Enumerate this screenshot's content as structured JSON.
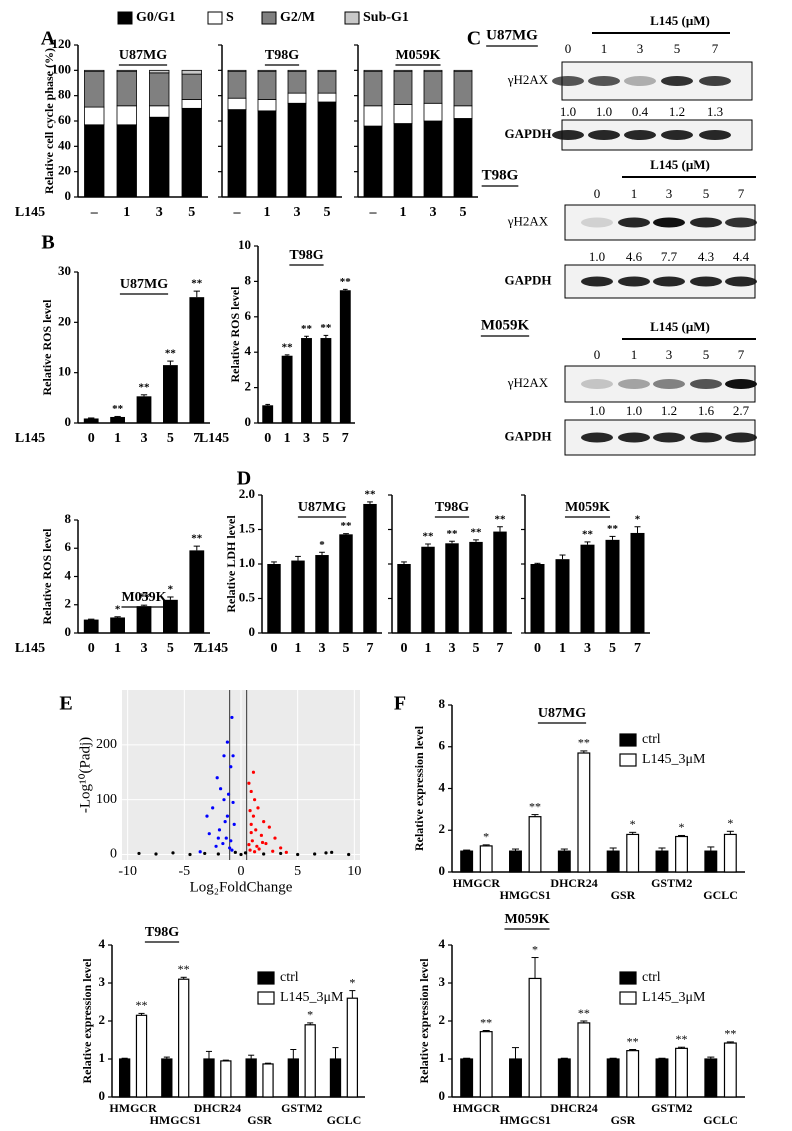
{
  "chart_data": [
    {
      "type": "stacked-bar",
      "panel": "A",
      "title": "U87MG",
      "y_label": "Relative cell cycle phase (%)",
      "x_label": "L145",
      "categories": [
        "–",
        "1",
        "3",
        "5"
      ],
      "ylim": [
        0,
        120
      ],
      "yticks": [
        0,
        20,
        40,
        60,
        80,
        100,
        120
      ],
      "series": [
        {
          "name": "G0/G1",
          "color": "#000000",
          "values": [
            57,
            57,
            63,
            70
          ]
        },
        {
          "name": "S",
          "color": "#ffffff",
          "values": [
            14,
            15,
            9,
            7
          ]
        },
        {
          "name": "G2/M",
          "color": "#808080",
          "values": [
            28,
            27,
            26,
            20
          ]
        },
        {
          "name": "Sub-G1",
          "color": "#c8c8c8",
          "values": [
            1,
            1,
            2,
            3
          ]
        }
      ]
    },
    {
      "type": "stacked-bar",
      "title": "T98G",
      "categories": [
        "–",
        "1",
        "3",
        "5"
      ],
      "ylim": [
        0,
        120
      ],
      "yticks": [
        0,
        20,
        40,
        60,
        80,
        100,
        120
      ],
      "series": [
        {
          "color": "#000000",
          "values": [
            69,
            68,
            74,
            75
          ]
        },
        {
          "color": "#ffffff",
          "values": [
            9,
            9,
            8,
            7
          ]
        },
        {
          "color": "#808080",
          "values": [
            21,
            22,
            17,
            17
          ]
        },
        {
          "color": "#c8c8c8",
          "values": [
            1,
            1,
            1,
            1
          ]
        }
      ]
    },
    {
      "type": "stacked-bar",
      "title": "M059K",
      "categories": [
        "–",
        "1",
        "3",
        "5"
      ],
      "ylim": [
        0,
        120
      ],
      "yticks": [
        0,
        20,
        40,
        60,
        80,
        100,
        120
      ],
      "series": [
        {
          "color": "#000000",
          "values": [
            56,
            58,
            60,
            62
          ]
        },
        {
          "color": "#ffffff",
          "values": [
            16,
            15,
            14,
            10
          ]
        },
        {
          "color": "#808080",
          "values": [
            27,
            26,
            25,
            27
          ]
        },
        {
          "color": "#c8c8c8",
          "values": [
            1,
            1,
            1,
            1
          ]
        }
      ]
    },
    {
      "type": "bar",
      "panel": "B",
      "title": "U87MG",
      "y_label": "Relative ROS level",
      "x_label": "L145",
      "color": "#000000",
      "categories": [
        "0",
        "1",
        "3",
        "5",
        "7"
      ],
      "values": [
        0.9,
        1.2,
        5.3,
        11.5,
        25
      ],
      "errors": [
        0.1,
        0.1,
        0.3,
        0.8,
        1.2
      ],
      "annotations": [
        null,
        "**",
        "**",
        "**",
        "**"
      ],
      "ylim": [
        0,
        30
      ],
      "yticks": [
        0,
        10,
        20,
        30
      ]
    },
    {
      "type": "bar",
      "title": "T98G",
      "y_label": "Relative ROS level",
      "x_label": "L145",
      "color": "#000000",
      "categories": [
        "0",
        "1",
        "3",
        "5",
        "7"
      ],
      "values": [
        1.0,
        3.8,
        4.8,
        4.8,
        7.5
      ],
      "errors": [
        0.05,
        0.05,
        0.1,
        0.15,
        0.05
      ],
      "annotations": [
        null,
        "**",
        "**",
        "**",
        "**"
      ],
      "ylim": [
        0,
        10
      ],
      "yticks": [
        0,
        2,
        4,
        6,
        8,
        10
      ]
    },
    {
      "type": "bar",
      "title": "M059K",
      "y_label": "Relative ROS level",
      "x_label": "L145",
      "color": "#000000",
      "categories": [
        "0",
        "1",
        "3",
        "5",
        "7"
      ],
      "values": [
        0.95,
        1.1,
        1.9,
        2.35,
        5.85
      ],
      "errors": [
        0.03,
        0.05,
        0.07,
        0.2,
        0.3
      ],
      "annotations": [
        null,
        "*",
        "**",
        "*",
        "**"
      ],
      "ylim": [
        0,
        8
      ],
      "yticks": [
        0,
        2,
        4,
        6,
        8
      ]
    },
    {
      "type": "bar",
      "panel": "D",
      "title": "U87MG",
      "y_label": "Relative LDH level",
      "x_label": "L145",
      "color": "#000000",
      "categories": [
        "0",
        "1",
        "3",
        "5",
        "7"
      ],
      "values": [
        1.0,
        1.05,
        1.13,
        1.43,
        1.87
      ],
      "errors": [
        0.03,
        0.06,
        0.04,
        0.01,
        0.03
      ],
      "annotations": [
        null,
        null,
        "*",
        "**",
        "**"
      ],
      "ylim": [
        0,
        2
      ],
      "yticks": [
        0,
        0.5,
        {
          "value": 1,
          "label": "1.0"
        },
        1.5,
        {
          "value": 2,
          "label": "2.0"
        }
      ]
    },
    {
      "type": "bar",
      "title": "T98G",
      "color": "#000000",
      "categories": [
        "0",
        "1",
        "3",
        "5",
        "7"
      ],
      "values": [
        1.0,
        1.25,
        1.3,
        1.32,
        1.47
      ],
      "errors": [
        0.03,
        0.04,
        0.03,
        0.03,
        0.07
      ],
      "annotations": [
        null,
        "**",
        "**",
        "**",
        "**"
      ],
      "ylim": [
        0,
        2
      ],
      "yticks": [
        0,
        0.5,
        1,
        1.5,
        2
      ]
    },
    {
      "type": "bar",
      "title": "M059K",
      "color": "#000000",
      "categories": [
        "0",
        "1",
        "3",
        "5",
        "7"
      ],
      "values": [
        1.0,
        1.07,
        1.28,
        1.35,
        1.45
      ],
      "errors": [
        0.01,
        0.06,
        0.04,
        0.05,
        0.09
      ],
      "annotations": [
        null,
        null,
        "**",
        "**",
        "*"
      ],
      "ylim": [
        0,
        2
      ],
      "yticks": [
        0,
        0.5,
        1,
        1.5,
        2
      ]
    },
    {
      "type": "scatter",
      "panel": "E",
      "x_label": "Log₂FoldChange",
      "y_label": "-Log¹⁰(Padj)",
      "grid": true,
      "xlim": [
        -10.5,
        10.5
      ],
      "xticks": [
        -10,
        -5,
        0,
        5,
        10
      ],
      "ylim": [
        -10,
        300
      ],
      "yticks": [
        0,
        100,
        200
      ],
      "vlines": [
        -1,
        0.5
      ],
      "series": [
        {
          "color": "#0000ff",
          "x": [
            -0.8,
            -1.2,
            -1.5,
            -0.9,
            -2.1,
            -1.8,
            -1.1,
            -0.7,
            -2.5,
            -3.0,
            -1.4,
            -0.6,
            -1.9,
            -2.8,
            -1.3,
            -0.9,
            -1.6,
            -2.2,
            -1.0,
            -0.8,
            -3.6,
            -1.2,
            -2.0,
            -1.5,
            -0.7
          ],
          "y": [
            250,
            205,
            180,
            160,
            140,
            120,
            110,
            95,
            85,
            70,
            60,
            55,
            45,
            38,
            30,
            25,
            20,
            15,
            12,
            8,
            5,
            70,
            30,
            100,
            180
          ]
        },
        {
          "color": "#ff0000",
          "x": [
            0.7,
            0.9,
            1.2,
            1.5,
            0.8,
            1.1,
            2.0,
            2.5,
            1.3,
            0.9,
            1.8,
            3.0,
            1.0,
            2.2,
            0.7,
            1.4,
            3.5,
            1.6,
            0.8,
            2.8,
            1.2,
            4.0,
            1.9,
            0.9,
            1.1
          ],
          "y": [
            130,
            115,
            100,
            85,
            80,
            70,
            60,
            50,
            45,
            40,
            35,
            30,
            25,
            20,
            18,
            15,
            12,
            10,
            8,
            6,
            5,
            4,
            22,
            55,
            150
          ]
        },
        {
          "color": "#000000",
          "x": [
            -9,
            -7.5,
            -6,
            -4.5,
            -3.2,
            -2,
            -0.5,
            0,
            0.4,
            2,
            3.5,
            5,
            6.5,
            7.5,
            8,
            9.5
          ],
          "y": [
            2,
            1,
            3,
            0,
            2,
            1,
            4,
            0,
            3,
            1,
            2,
            0,
            1,
            3,
            4,
            0
          ]
        }
      ]
    },
    {
      "type": "grouped-bar",
      "panel": "F",
      "title": "U87MG",
      "y_label": "Relative expression level",
      "categories": [
        "HMGCR",
        "HMGCS1",
        "DHCR24",
        "GSR",
        "GSTM2",
        "GCLC"
      ],
      "ylim": [
        0,
        8
      ],
      "yticks": [
        0,
        2,
        4,
        6,
        8
      ],
      "annotations": [
        "*",
        "**",
        "**",
        "*",
        "*",
        "*"
      ],
      "series": [
        {
          "name": "ctrl",
          "color": "#000000",
          "values": [
            1,
            1,
            1,
            1,
            1,
            1
          ],
          "errors": [
            0.05,
            0.1,
            0.1,
            0.15,
            0.15,
            0.2
          ]
        },
        {
          "name": "L145_3μM",
          "color": "#ffffff",
          "values": [
            1.25,
            2.65,
            5.7,
            1.8,
            1.7,
            1.8
          ],
          "errors": [
            0.05,
            0.1,
            0.1,
            0.1,
            0.05,
            0.15
          ]
        }
      ]
    },
    {
      "type": "grouped-bar",
      "title": "T98G",
      "y_label": "Relative expression level",
      "categories": [
        "HMGCR",
        "HMGCS1",
        "DHCR24",
        "GSR",
        "GSTM2",
        "GCLC"
      ],
      "ylim": [
        0,
        4
      ],
      "yticks": [
        0,
        1,
        2,
        3,
        4
      ],
      "annotations": [
        "**",
        "**",
        null,
        null,
        "*",
        "*"
      ],
      "series": [
        {
          "name": "ctrl",
          "color": "#000000",
          "values": [
            1,
            1,
            1,
            1,
            1,
            1
          ],
          "errors": [
            0.02,
            0.05,
            0.2,
            0.1,
            0.25,
            0.3
          ]
        },
        {
          "name": "L145_3μM",
          "color": "#ffffff",
          "values": [
            2.15,
            3.1,
            0.95,
            0.87,
            1.9,
            2.6
          ],
          "errors": [
            0.05,
            0.05,
            0.02,
            0.02,
            0.05,
            0.2
          ]
        }
      ]
    },
    {
      "type": "grouped-bar",
      "title": "M059K",
      "y_label": "Relative expression level",
      "categories": [
        "HMGCR",
        "HMGCS1",
        "DHCR24",
        "GSR",
        "GSTM2",
        "GCLC"
      ],
      "ylim": [
        0,
        4
      ],
      "yticks": [
        0,
        1,
        2,
        3,
        4
      ],
      "annotations": [
        "**",
        "*",
        "**",
        "**",
        "**",
        "**"
      ],
      "series": [
        {
          "name": "ctrl",
          "color": "#000000",
          "values": [
            1,
            1,
            1,
            1,
            1,
            1
          ],
          "errors": [
            0.02,
            0.3,
            0.02,
            0.02,
            0.02,
            0.05
          ]
        },
        {
          "name": "L145_3μM",
          "color": "#ffffff",
          "values": [
            1.72,
            3.12,
            1.95,
            1.22,
            1.28,
            1.42
          ],
          "errors": [
            0.03,
            0.55,
            0.05,
            0.03,
            0.03,
            0.03
          ]
        }
      ]
    }
  ],
  "blots": {
    "panel": "C",
    "blocks": [
      {
        "title": "U87MG",
        "treatment": "L145 (μM)",
        "lanes": [
          "0",
          "1",
          "3",
          "5",
          "7"
        ],
        "rows": [
          "γH2AX",
          "GAPDH"
        ],
        "quant": [
          "1.0",
          "1.0",
          "0.4",
          "1.2",
          "1.3"
        ]
      },
      {
        "title": "T98G",
        "treatment": "L145 (μM)",
        "lanes": [
          "0",
          "1",
          "3",
          "5",
          "7"
        ],
        "rows": [
          "γH2AX",
          "GAPDH"
        ],
        "quant": [
          "1.0",
          "4.6",
          "7.7",
          "4.3",
          "4.4"
        ]
      },
      {
        "title": "M059K",
        "treatment": "L145 (μM)",
        "lanes": [
          "0",
          "1",
          "3",
          "5",
          "7"
        ],
        "rows": [
          "γH2AX",
          "GAPDH"
        ],
        "quant": [
          "1.0",
          "1.0",
          "1.2",
          "1.6",
          "2.7"
        ]
      }
    ]
  }
}
